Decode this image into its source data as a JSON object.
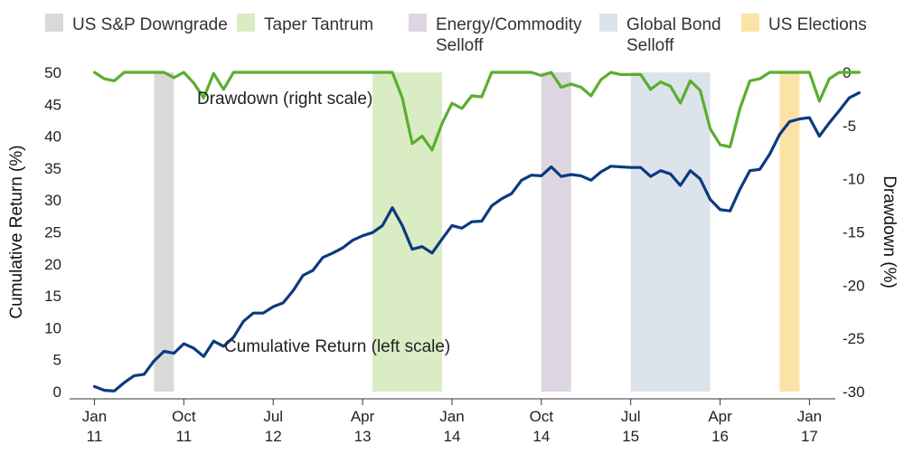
{
  "chart_data": {
    "type": "line",
    "title": "",
    "legend": {
      "placement": "top",
      "items": [
        {
          "label": "US S&P Downgrade",
          "color": "#d9d9d9"
        },
        {
          "label": "Taper Tantrum",
          "color": "#d9ecc4"
        },
        {
          "label": "Energy/Commodity Selloff",
          "color": "#ddd6e1"
        },
        {
          "label": "Global Bond Selloff",
          "color": "#dde3ea"
        },
        {
          "label": "US Elections",
          "color": "#fbe3a8"
        }
      ]
    },
    "shaded_periods": [
      {
        "label": "US S&P Downgrade",
        "start": "2011-07",
        "end": "2011-09",
        "color": "#d9d9d9"
      },
      {
        "label": "Taper Tantrum",
        "start": "2013-05",
        "end": "2013-12",
        "color": "#d9ecc4"
      },
      {
        "label": "Energy/Commodity Selloff",
        "start": "2014-10",
        "end": "2015-01",
        "color": "#ddd6e1"
      },
      {
        "label": "Global Bond Selloff",
        "start": "2015-07",
        "end": "2016-03",
        "color": "#dde3ea"
      },
      {
        "label": "US Elections",
        "start": "2016-10",
        "end": "2016-12",
        "color": "#fbe3a8"
      }
    ],
    "x_ticks": [
      {
        "line1": "Jan",
        "line2": "11",
        "month": 0
      },
      {
        "line1": "Oct",
        "line2": "11",
        "month": 9
      },
      {
        "line1": "Jul",
        "line2": "12",
        "month": 18
      },
      {
        "line1": "Apr",
        "line2": "13",
        "month": 27
      },
      {
        "line1": "Jan",
        "line2": "14",
        "month": 36
      },
      {
        "line1": "Oct",
        "line2": "14",
        "month": 45
      },
      {
        "line1": "Jul",
        "line2": "15",
        "month": 54
      },
      {
        "line1": "Apr",
        "line2": "16",
        "month": 63
      },
      {
        "line1": "Jan",
        "line2": "17",
        "month": 72
      }
    ],
    "x_domain_months": [
      -2.5,
      74.6
    ],
    "y_left": {
      "label": "Cumulative Return (%)",
      "ylim": [
        0,
        50
      ],
      "ticks": [
        0,
        5,
        10,
        15,
        20,
        25,
        30,
        35,
        40,
        45,
        50
      ]
    },
    "y_right": {
      "label": "Drawdown (%)",
      "ylim": [
        -30,
        0
      ],
      "ticks": [
        0,
        -5,
        -10,
        -15,
        -20,
        -25,
        -30
      ]
    },
    "series": [
      {
        "name": "Cumulative Return (left scale)",
        "axis": "left",
        "color": "#0b3a80",
        "values": [
          0.8,
          0.2,
          0.1,
          1.4,
          2.5,
          2.7,
          4.8,
          6.3,
          6.0,
          7.5,
          6.8,
          5.5,
          7.9,
          7.1,
          8.5,
          11.0,
          12.3,
          12.3,
          13.3,
          13.9,
          15.8,
          18.2,
          19.0,
          21.0,
          21.7,
          22.5,
          23.7,
          24.4,
          24.9,
          26.0,
          28.8,
          26.0,
          22.3,
          22.7,
          21.7,
          23.9,
          26.0,
          25.6,
          26.6,
          26.7,
          29.1,
          30.2,
          31.0,
          33.1,
          33.9,
          33.8,
          35.2,
          33.7,
          34.0,
          33.8,
          33.1,
          34.4,
          35.3,
          35.2,
          35.1,
          35.1,
          33.7,
          34.6,
          34.1,
          32.3,
          34.6,
          33.3,
          30.1,
          28.5,
          28.3,
          31.7,
          34.6,
          34.8,
          37.2,
          40.3,
          42.3,
          42.7,
          42.9,
          40.0,
          42.1,
          44.0,
          46.0,
          46.8
        ]
      },
      {
        "name": "Drawdown (right scale)",
        "axis": "right",
        "color": "#5aae2f",
        "values": [
          0.0,
          -0.6,
          -0.8,
          0.0,
          0.0,
          0.0,
          0.0,
          0.0,
          -0.5,
          0.0,
          -1.0,
          -2.4,
          -0.1,
          -1.6,
          0.0,
          0.0,
          0.0,
          0.0,
          0.0,
          0.0,
          0.0,
          0.0,
          0.0,
          0.0,
          0.0,
          0.0,
          0.0,
          0.0,
          0.0,
          0.0,
          0.0,
          -2.4,
          -6.7,
          -6.0,
          -7.3,
          -4.8,
          -2.9,
          -3.4,
          -2.2,
          -2.3,
          0.0,
          0.0,
          0.0,
          0.0,
          0.0,
          -0.3,
          0.0,
          -1.4,
          -1.1,
          -1.4,
          -2.2,
          -0.7,
          0.0,
          -0.2,
          -0.2,
          -0.2,
          -1.6,
          -0.9,
          -1.3,
          -2.9,
          -0.8,
          -1.7,
          -5.3,
          -6.8,
          -7.0,
          -3.4,
          -0.8,
          -0.6,
          0.0,
          0.0,
          0.0,
          0.0,
          0.0,
          -2.7,
          -0.6,
          0.0,
          0.0,
          0.0
        ]
      }
    ],
    "annotations": [
      {
        "text": "Drawdown (right scale)",
        "series": "Drawdown (right scale)"
      },
      {
        "text": "Cumulative Return (left scale)",
        "series": "Cumulative Return (left scale)"
      }
    ],
    "grid": false
  }
}
